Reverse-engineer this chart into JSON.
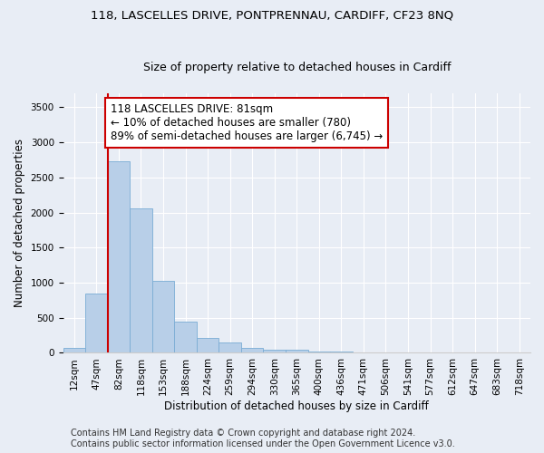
{
  "title": "118, LASCELLES DRIVE, PONTPRENNAU, CARDIFF, CF23 8NQ",
  "subtitle": "Size of property relative to detached houses in Cardiff",
  "xlabel": "Distribution of detached houses by size in Cardiff",
  "ylabel": "Number of detached properties",
  "bar_color": "#b8cfe8",
  "bar_edge_color": "#7aacd4",
  "annotation_line_color": "#cc0000",
  "annotation_box_edge_color": "#cc0000",
  "annotation_text": "118 LASCELLES DRIVE: 81sqm\n← 10% of detached houses are smaller (780)\n89% of semi-detached houses are larger (6,745) →",
  "tick_labels": [
    "12sqm",
    "47sqm",
    "82sqm",
    "118sqm",
    "153sqm",
    "188sqm",
    "224sqm",
    "259sqm",
    "294sqm",
    "330sqm",
    "365sqm",
    "400sqm",
    "436sqm",
    "471sqm",
    "506sqm",
    "541sqm",
    "577sqm",
    "612sqm",
    "647sqm",
    "683sqm",
    "718sqm"
  ],
  "bar_heights": [
    65,
    850,
    2730,
    2060,
    1020,
    450,
    210,
    145,
    65,
    50,
    40,
    25,
    15,
    8,
    4,
    2,
    1,
    0,
    0,
    0,
    0
  ],
  "ylim": [
    0,
    3700
  ],
  "yticks": [
    0,
    500,
    1000,
    1500,
    2000,
    2500,
    3000,
    3500
  ],
  "footer_line1": "Contains HM Land Registry data © Crown copyright and database right 2024.",
  "footer_line2": "Contains public sector information licensed under the Open Government Licence v3.0.",
  "background_color": "#e8edf5",
  "plot_background_color": "#e8edf5",
  "grid_color": "#ffffff",
  "title_fontsize": 9.5,
  "subtitle_fontsize": 9,
  "axis_label_fontsize": 8.5,
  "tick_fontsize": 7.5,
  "footer_fontsize": 7,
  "annotation_fontsize": 8.5,
  "red_line_bar_index": 2
}
